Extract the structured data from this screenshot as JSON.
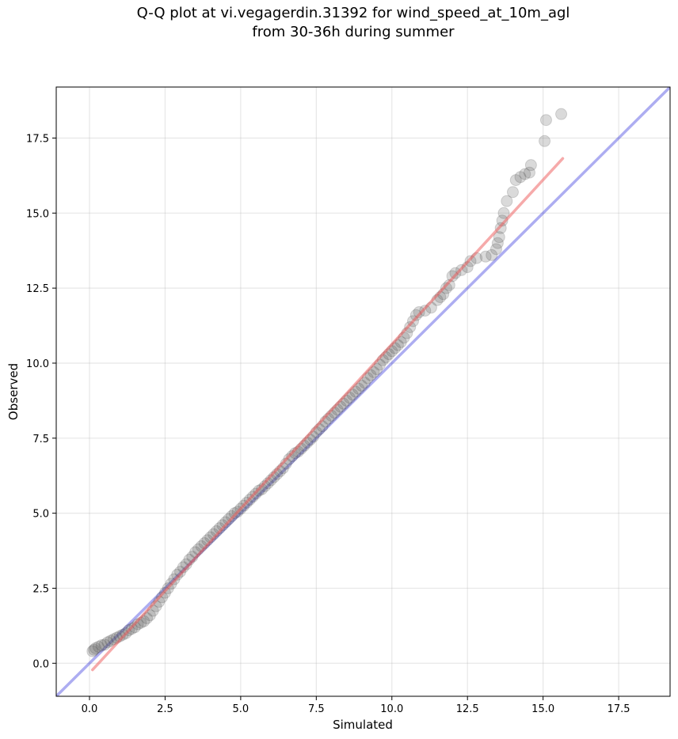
{
  "chart_data": {
    "type": "scatter",
    "title_line1": "Q-Q plot at vi.vegagerdin.31392 for wind_speed_at_10m_agl",
    "title_line2": "from 30-36h during summer",
    "xlabel": "Simulated",
    "ylabel": "Observed",
    "xlim": [
      -1.1,
      19.2
    ],
    "ylim": [
      -1.1,
      19.2
    ],
    "xticks": [
      "0.0",
      "2.5",
      "5.0",
      "7.5",
      "10.0",
      "12.5",
      "15.0",
      "17.5"
    ],
    "yticks": [
      "0.0",
      "2.5",
      "5.0",
      "7.5",
      "10.0",
      "12.5",
      "15.0",
      "17.5"
    ],
    "tick_values": [
      0,
      2.5,
      5,
      7.5,
      10,
      12.5,
      15,
      17.5
    ],
    "grid": true,
    "point_color": "#555555",
    "identity_line": {
      "color": "#3333dd",
      "from": [
        -1.1,
        -1.1
      ],
      "to": [
        19.2,
        19.2
      ]
    },
    "fit_line": {
      "color": "#ee5555",
      "from": [
        0.1,
        -0.22
      ],
      "to": [
        15.65,
        16.82
      ]
    },
    "points": [
      [
        0.1,
        0.4
      ],
      [
        0.15,
        0.45
      ],
      [
        0.2,
        0.5
      ],
      [
        0.3,
        0.55
      ],
      [
        0.4,
        0.6
      ],
      [
        0.5,
        0.62
      ],
      [
        0.6,
        0.7
      ],
      [
        0.7,
        0.75
      ],
      [
        0.8,
        0.8
      ],
      [
        0.9,
        0.85
      ],
      [
        1.0,
        0.9
      ],
      [
        1.1,
        0.95
      ],
      [
        1.2,
        1.0
      ],
      [
        1.3,
        1.1
      ],
      [
        1.4,
        1.15
      ],
      [
        1.5,
        1.2
      ],
      [
        1.6,
        1.3
      ],
      [
        1.7,
        1.35
      ],
      [
        1.8,
        1.4
      ],
      [
        1.9,
        1.5
      ],
      [
        2.0,
        1.6
      ],
      [
        2.1,
        1.75
      ],
      [
        2.2,
        1.9
      ],
      [
        2.3,
        2.05
      ],
      [
        2.4,
        2.2
      ],
      [
        2.5,
        2.35
      ],
      [
        2.6,
        2.5
      ],
      [
        2.7,
        2.65
      ],
      [
        2.8,
        2.8
      ],
      [
        2.9,
        2.95
      ],
      [
        3.0,
        3.05
      ],
      [
        3.1,
        3.2
      ],
      [
        3.2,
        3.3
      ],
      [
        3.3,
        3.45
      ],
      [
        3.4,
        3.55
      ],
      [
        3.5,
        3.7
      ],
      [
        3.6,
        3.8
      ],
      [
        3.7,
        3.9
      ],
      [
        3.8,
        4.0
      ],
      [
        3.9,
        4.1
      ],
      [
        4.0,
        4.2
      ],
      [
        4.1,
        4.3
      ],
      [
        4.2,
        4.4
      ],
      [
        4.3,
        4.5
      ],
      [
        4.4,
        4.6
      ],
      [
        4.5,
        4.7
      ],
      [
        4.6,
        4.8
      ],
      [
        4.7,
        4.9
      ],
      [
        4.8,
        5.0
      ],
      [
        4.9,
        5.05
      ],
      [
        5.0,
        5.15
      ],
      [
        5.1,
        5.25
      ],
      [
        5.2,
        5.35
      ],
      [
        5.3,
        5.45
      ],
      [
        5.4,
        5.55
      ],
      [
        5.5,
        5.65
      ],
      [
        5.6,
        5.75
      ],
      [
        5.7,
        5.8
      ],
      [
        5.8,
        5.9
      ],
      [
        5.9,
        6.0
      ],
      [
        6.0,
        6.1
      ],
      [
        6.1,
        6.2
      ],
      [
        6.2,
        6.3
      ],
      [
        6.3,
        6.4
      ],
      [
        6.4,
        6.5
      ],
      [
        6.5,
        6.65
      ],
      [
        6.6,
        6.8
      ],
      [
        6.7,
        6.9
      ],
      [
        6.8,
        7.0
      ],
      [
        6.9,
        7.05
      ],
      [
        7.0,
        7.15
      ],
      [
        7.1,
        7.25
      ],
      [
        7.2,
        7.35
      ],
      [
        7.3,
        7.45
      ],
      [
        7.4,
        7.55
      ],
      [
        7.5,
        7.7
      ],
      [
        7.6,
        7.8
      ],
      [
        7.7,
        7.9
      ],
      [
        7.8,
        8.05
      ],
      [
        7.9,
        8.15
      ],
      [
        8.0,
        8.25
      ],
      [
        8.1,
        8.35
      ],
      [
        8.2,
        8.45
      ],
      [
        8.3,
        8.55
      ],
      [
        8.4,
        8.65
      ],
      [
        8.5,
        8.75
      ],
      [
        8.6,
        8.85
      ],
      [
        8.7,
        8.95
      ],
      [
        8.8,
        9.05
      ],
      [
        8.9,
        9.15
      ],
      [
        9.0,
        9.25
      ],
      [
        9.1,
        9.35
      ],
      [
        9.2,
        9.5
      ],
      [
        9.3,
        9.6
      ],
      [
        9.4,
        9.7
      ],
      [
        9.5,
        9.8
      ],
      [
        9.6,
        9.95
      ],
      [
        9.7,
        10.1
      ],
      [
        9.8,
        10.2
      ],
      [
        9.9,
        10.3
      ],
      [
        10.0,
        10.4
      ],
      [
        10.1,
        10.5
      ],
      [
        10.2,
        10.6
      ],
      [
        10.3,
        10.7
      ],
      [
        10.4,
        10.85
      ],
      [
        10.5,
        11.0
      ],
      [
        10.6,
        11.2
      ],
      [
        10.7,
        11.4
      ],
      [
        10.8,
        11.6
      ],
      [
        10.9,
        11.7
      ],
      [
        11.1,
        11.75
      ],
      [
        11.3,
        11.85
      ],
      [
        11.5,
        12.1
      ],
      [
        11.6,
        12.2
      ],
      [
        11.7,
        12.3
      ],
      [
        11.8,
        12.5
      ],
      [
        11.9,
        12.6
      ],
      [
        12.0,
        12.9
      ],
      [
        12.1,
        13.0
      ],
      [
        12.3,
        13.1
      ],
      [
        12.5,
        13.2
      ],
      [
        12.6,
        13.4
      ],
      [
        12.8,
        13.5
      ],
      [
        13.1,
        13.55
      ],
      [
        13.3,
        13.6
      ],
      [
        13.45,
        13.8
      ],
      [
        13.5,
        14.0
      ],
      [
        13.55,
        14.2
      ],
      [
        13.6,
        14.5
      ],
      [
        13.65,
        14.75
      ],
      [
        13.7,
        15.0
      ],
      [
        13.8,
        15.4
      ],
      [
        14.0,
        15.7
      ],
      [
        14.1,
        16.1
      ],
      [
        14.25,
        16.2
      ],
      [
        14.4,
        16.3
      ],
      [
        14.55,
        16.35
      ],
      [
        14.6,
        16.6
      ],
      [
        15.05,
        17.4
      ],
      [
        15.1,
        18.1
      ],
      [
        15.6,
        18.3
      ]
    ]
  }
}
